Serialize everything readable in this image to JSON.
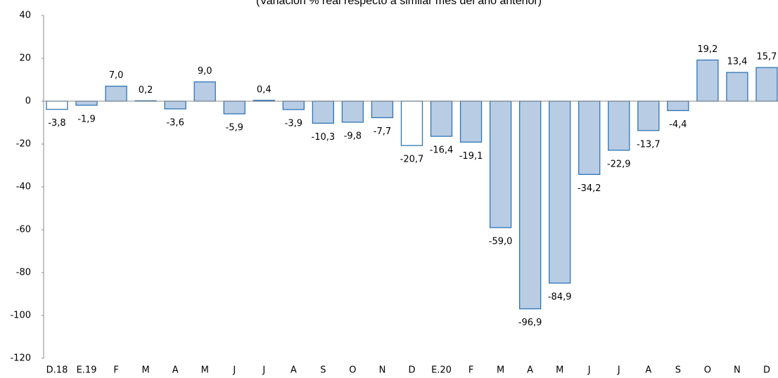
{
  "chart_data": {
    "type": "bar",
    "subtitle": "(Variación % real respecto a similar mes del año anterior)",
    "categories": [
      "D.18",
      "E.19",
      "F",
      "M",
      "A",
      "M",
      "J",
      "J",
      "A",
      "S",
      "O",
      "N",
      "D",
      "E.20",
      "F",
      "M",
      "A",
      "M",
      "J",
      "J",
      "A",
      "S",
      "O",
      "N",
      "D"
    ],
    "values": [
      -3.8,
      -1.9,
      7.0,
      0.2,
      -3.6,
      9.0,
      -5.9,
      0.4,
      -3.9,
      -10.3,
      -9.8,
      -7.7,
      -20.7,
      -16.4,
      -19.1,
      -59.0,
      -96.9,
      -84.9,
      -34.2,
      -22.9,
      -13.7,
      -4.4,
      19.2,
      13.4,
      15.7
    ],
    "value_labels": [
      "-3,8",
      "-1,9",
      "7,0",
      "0,2",
      "-3,6",
      "9,0",
      "-5,9",
      "0,4",
      "-3,9",
      "-10,3",
      "-9,8",
      "-7,7",
      "-20,7",
      "-16,4",
      "-19,1",
      "-59,0",
      "-96,9",
      "-84,9",
      "-34,2",
      "-22,9",
      "-13,7",
      "-4,4",
      "19,2",
      "13,4",
      "15,7"
    ],
    "colors": [
      "#ffffff",
      "#b8cce4",
      "#b8cce4",
      "#b8cce4",
      "#b8cce4",
      "#b8cce4",
      "#b8cce4",
      "#b8cce4",
      "#b8cce4",
      "#b8cce4",
      "#b8cce4",
      "#b8cce4",
      "#ffffff",
      "#b8cce4",
      "#b8cce4",
      "#b8cce4",
      "#b8cce4",
      "#b8cce4",
      "#b8cce4",
      "#b8cce4",
      "#b8cce4",
      "#b8cce4",
      "#b8cce4",
      "#b8cce4",
      "#b8cce4"
    ],
    "edge_color": "#2e75b6",
    "ylim": [
      -120,
      40
    ],
    "yticks": [
      -120,
      -100,
      -80,
      -60,
      -40,
      -20,
      0,
      20,
      40
    ]
  }
}
